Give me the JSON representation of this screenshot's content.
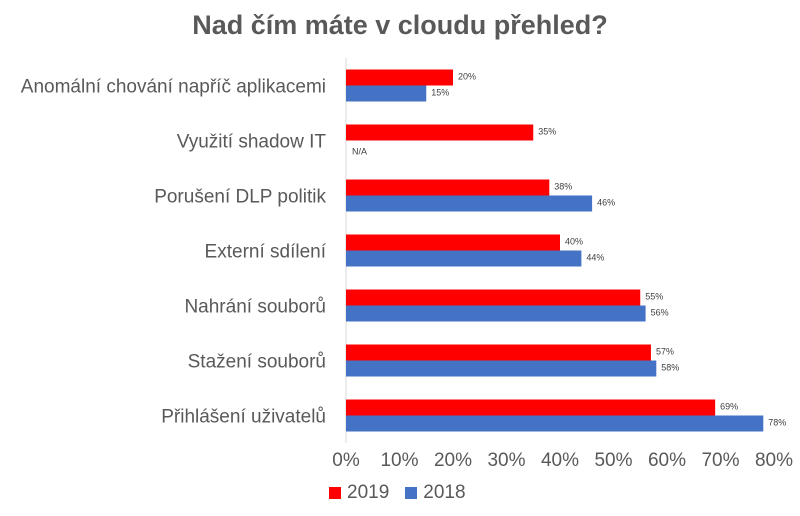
{
  "chart_data": {
    "type": "bar",
    "orientation": "horizontal",
    "title": "Nad čím máte v cloudu přehled?",
    "categories": [
      "Anomální chování napříč aplikacemi",
      "Využití shadow IT",
      "Porušení DLP politik",
      "Externí sdílení",
      "Nahrání souborů",
      "Stažení souborů",
      "Přihlášení uživatelů"
    ],
    "series": [
      {
        "name": "2019",
        "color": "#ff0000",
        "values": [
          20,
          35,
          38,
          40,
          55,
          57,
          69
        ],
        "labels": [
          "20%",
          "35%",
          "38%",
          "40%",
          "55%",
          "57%",
          "69%"
        ]
      },
      {
        "name": "2018",
        "color": "#4472c4",
        "values": [
          15,
          null,
          46,
          44,
          56,
          58,
          78
        ],
        "labels": [
          "15%",
          "N/A",
          "46%",
          "44%",
          "56%",
          "58%",
          "78%"
        ]
      }
    ],
    "xlim": [
      0,
      80
    ],
    "ticks": [
      "0%",
      "10%",
      "20%",
      "30%",
      "40%",
      "50%",
      "60%",
      "70%",
      "80%"
    ],
    "legend_position": "bottom",
    "grid": false
  }
}
